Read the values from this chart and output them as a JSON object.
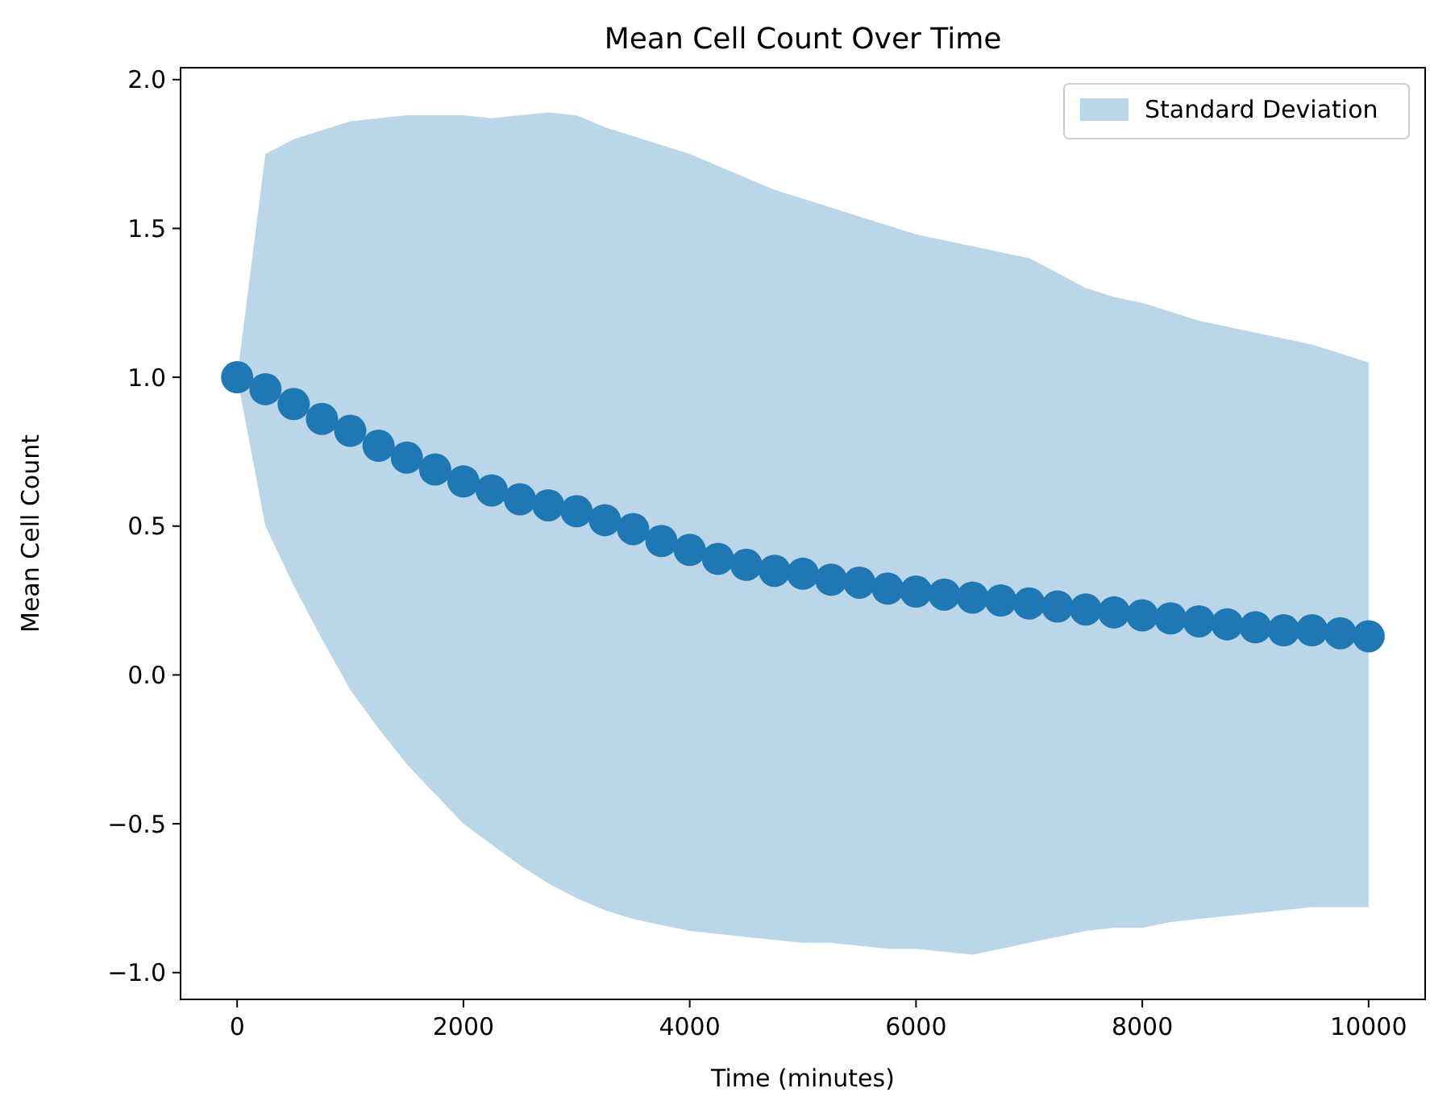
{
  "chart_data": {
    "type": "scatter",
    "title": "Mean Cell Count Over Time",
    "xlabel": "Time (minutes)",
    "ylabel": "Mean Cell Count",
    "xlim": [
      -500,
      10500
    ],
    "ylim": [
      -1.09,
      2.04
    ],
    "xticks": [
      0,
      2000,
      4000,
      6000,
      8000,
      10000
    ],
    "yticks": [
      {
        "value": -1,
        "label": "−1.0"
      },
      {
        "value": -0.5,
        "label": "−0.5"
      },
      {
        "value": 0,
        "label": "0.0"
      },
      {
        "value": 0.5,
        "label": "0.5"
      },
      {
        "value": 1,
        "label": "1.0"
      },
      {
        "value": 1.5,
        "label": "1.5"
      },
      {
        "value": 2,
        "label": "2.0"
      }
    ],
    "legend": "top right",
    "marker": "circle",
    "grid": false,
    "x": [
      0,
      250,
      500,
      750,
      1000,
      1250,
      1500,
      1750,
      2000,
      2250,
      2500,
      2750,
      3000,
      3250,
      3500,
      3750,
      4000,
      4250,
      4500,
      4750,
      5000,
      5250,
      5500,
      5750,
      6000,
      6250,
      6500,
      6750,
      7000,
      7250,
      7500,
      7750,
      8000,
      8250,
      8500,
      8750,
      9000,
      9250,
      9500,
      9750,
      10000
    ],
    "series": [
      {
        "name": "Standard Deviation",
        "color": "#1f77b4",
        "values": [
          1.0,
          0.96,
          0.91,
          0.86,
          0.82,
          0.77,
          0.73,
          0.69,
          0.65,
          0.62,
          0.59,
          0.57,
          0.55,
          0.52,
          0.49,
          0.45,
          0.42,
          0.39,
          0.37,
          0.35,
          0.34,
          0.32,
          0.31,
          0.29,
          0.28,
          0.27,
          0.26,
          0.25,
          0.24,
          0.23,
          0.22,
          0.21,
          0.2,
          0.19,
          0.18,
          0.17,
          0.16,
          0.15,
          0.15,
          0.14,
          0.13
        ],
        "upper": [
          1.0,
          1.75,
          1.8,
          1.83,
          1.86,
          1.87,
          1.88,
          1.88,
          1.88,
          1.87,
          1.88,
          1.89,
          1.88,
          1.84,
          1.81,
          1.78,
          1.75,
          1.71,
          1.67,
          1.63,
          1.6,
          1.57,
          1.54,
          1.51,
          1.48,
          1.46,
          1.44,
          1.42,
          1.4,
          1.35,
          1.3,
          1.27,
          1.25,
          1.22,
          1.19,
          1.17,
          1.15,
          1.13,
          1.11,
          1.08,
          1.05
        ],
        "lower": [
          1.0,
          0.5,
          0.3,
          0.12,
          -0.05,
          -0.18,
          -0.3,
          -0.4,
          -0.5,
          -0.57,
          -0.64,
          -0.7,
          -0.75,
          -0.79,
          -0.82,
          -0.84,
          -0.86,
          -0.87,
          -0.88,
          -0.89,
          -0.9,
          -0.9,
          -0.91,
          -0.92,
          -0.92,
          -0.93,
          -0.94,
          -0.92,
          -0.9,
          -0.88,
          -0.86,
          -0.85,
          -0.85,
          -0.83,
          -0.82,
          -0.81,
          -0.8,
          -0.79,
          -0.78,
          -0.78,
          -0.78
        ]
      }
    ]
  }
}
